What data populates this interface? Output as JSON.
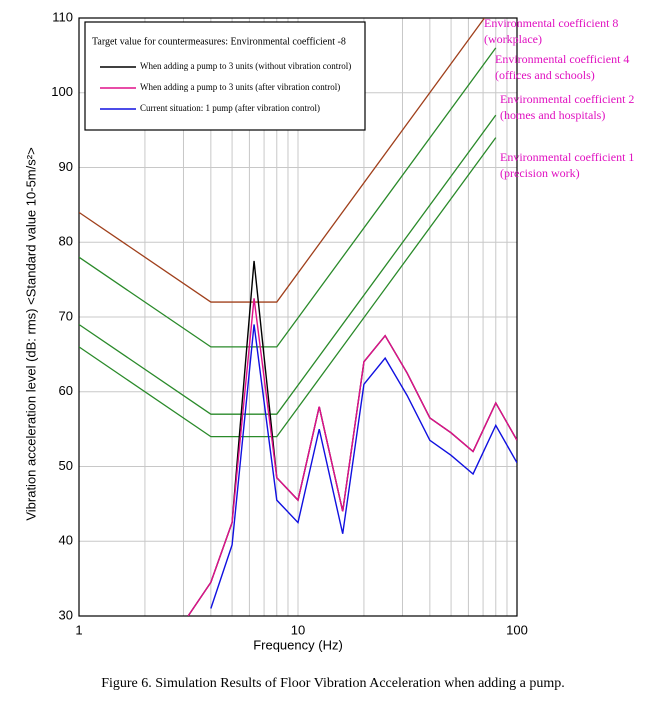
{
  "chart_data": {
    "type": "line",
    "x_label": "Frequency (Hz)",
    "y_label": "Vibration acceleration level (dB: rms) <Standard value 10-5m/s²>",
    "caption": "Figure 6. Simulation Results of Floor Vibration Acceleration when adding a pump.",
    "legend_title": "Target value for countermeasures: Environmental coefficient -8",
    "xlog": true,
    "grid": true,
    "xlim": [
      1,
      100
    ],
    "xticks": [
      1,
      10,
      100
    ],
    "ylim": [
      30,
      110
    ],
    "yticks": [
      30,
      40,
      50,
      60,
      70,
      80,
      90,
      100,
      110
    ],
    "reference_lines": [
      {
        "label": [
          "Environmental coefficient 8",
          "(workplace)"
        ],
        "color": "#a0401c",
        "x": [
          1,
          4,
          8,
          71
        ],
        "values": [
          84,
          72,
          72,
          110
        ]
      },
      {
        "label": [
          "Environmental coefficient 4",
          "(offices and schools)"
        ],
        "color": "#2a8a2a",
        "x": [
          1,
          4,
          8,
          80
        ],
        "values": [
          78,
          66,
          66,
          106
        ]
      },
      {
        "label": [
          "Environmental coefficient 2",
          "(homes and hospitals)"
        ],
        "color": "#2a8a2a",
        "x": [
          1,
          4,
          8,
          80
        ],
        "values": [
          69,
          57,
          57,
          97
        ]
      },
      {
        "label": [
          "Environmental coefficient 1",
          "(precision work)"
        ],
        "color": "#2a8a2a",
        "x": [
          1,
          4,
          8,
          80
        ],
        "values": [
          66,
          54,
          54,
          94
        ]
      }
    ],
    "series": [
      {
        "name": "When adding a pump to 3 units (without vibration control)",
        "color": "#000000",
        "x": [
          3.15,
          4,
          5,
          6.3,
          8,
          10,
          12.5,
          16,
          20,
          25,
          31.5,
          40,
          50,
          63,
          80,
          100
        ],
        "values": [
          30,
          34.5,
          42.5,
          77.5,
          48.5,
          45.5,
          58,
          44,
          64,
          67.5,
          62.5,
          56.5,
          54.5,
          52,
          58.5,
          53.5
        ]
      },
      {
        "name": "When adding a pump to 3 units (after vibration control)",
        "color": "#e0108a",
        "x": [
          3.15,
          4,
          5,
          6.3,
          8,
          10,
          12.5,
          16,
          20,
          25,
          31.5,
          40,
          50,
          63,
          80,
          100
        ],
        "values": [
          30,
          34.5,
          42.5,
          72.5,
          48.5,
          45.5,
          58,
          44,
          64,
          67.5,
          62.5,
          56.5,
          54.5,
          52,
          58.5,
          53.5
        ]
      },
      {
        "name": "Current situation: 1 pump (after vibration control)",
        "color": "#1010e0",
        "x": [
          4,
          5,
          6.3,
          8,
          10,
          12.5,
          16,
          20,
          25,
          31.5,
          40,
          50,
          63,
          80,
          100
        ],
        "values": [
          31,
          39.5,
          69,
          45.5,
          42.5,
          55,
          41,
          61,
          64.5,
          59.5,
          53.5,
          51.5,
          49,
          55.5,
          50.5
        ]
      }
    ]
  }
}
